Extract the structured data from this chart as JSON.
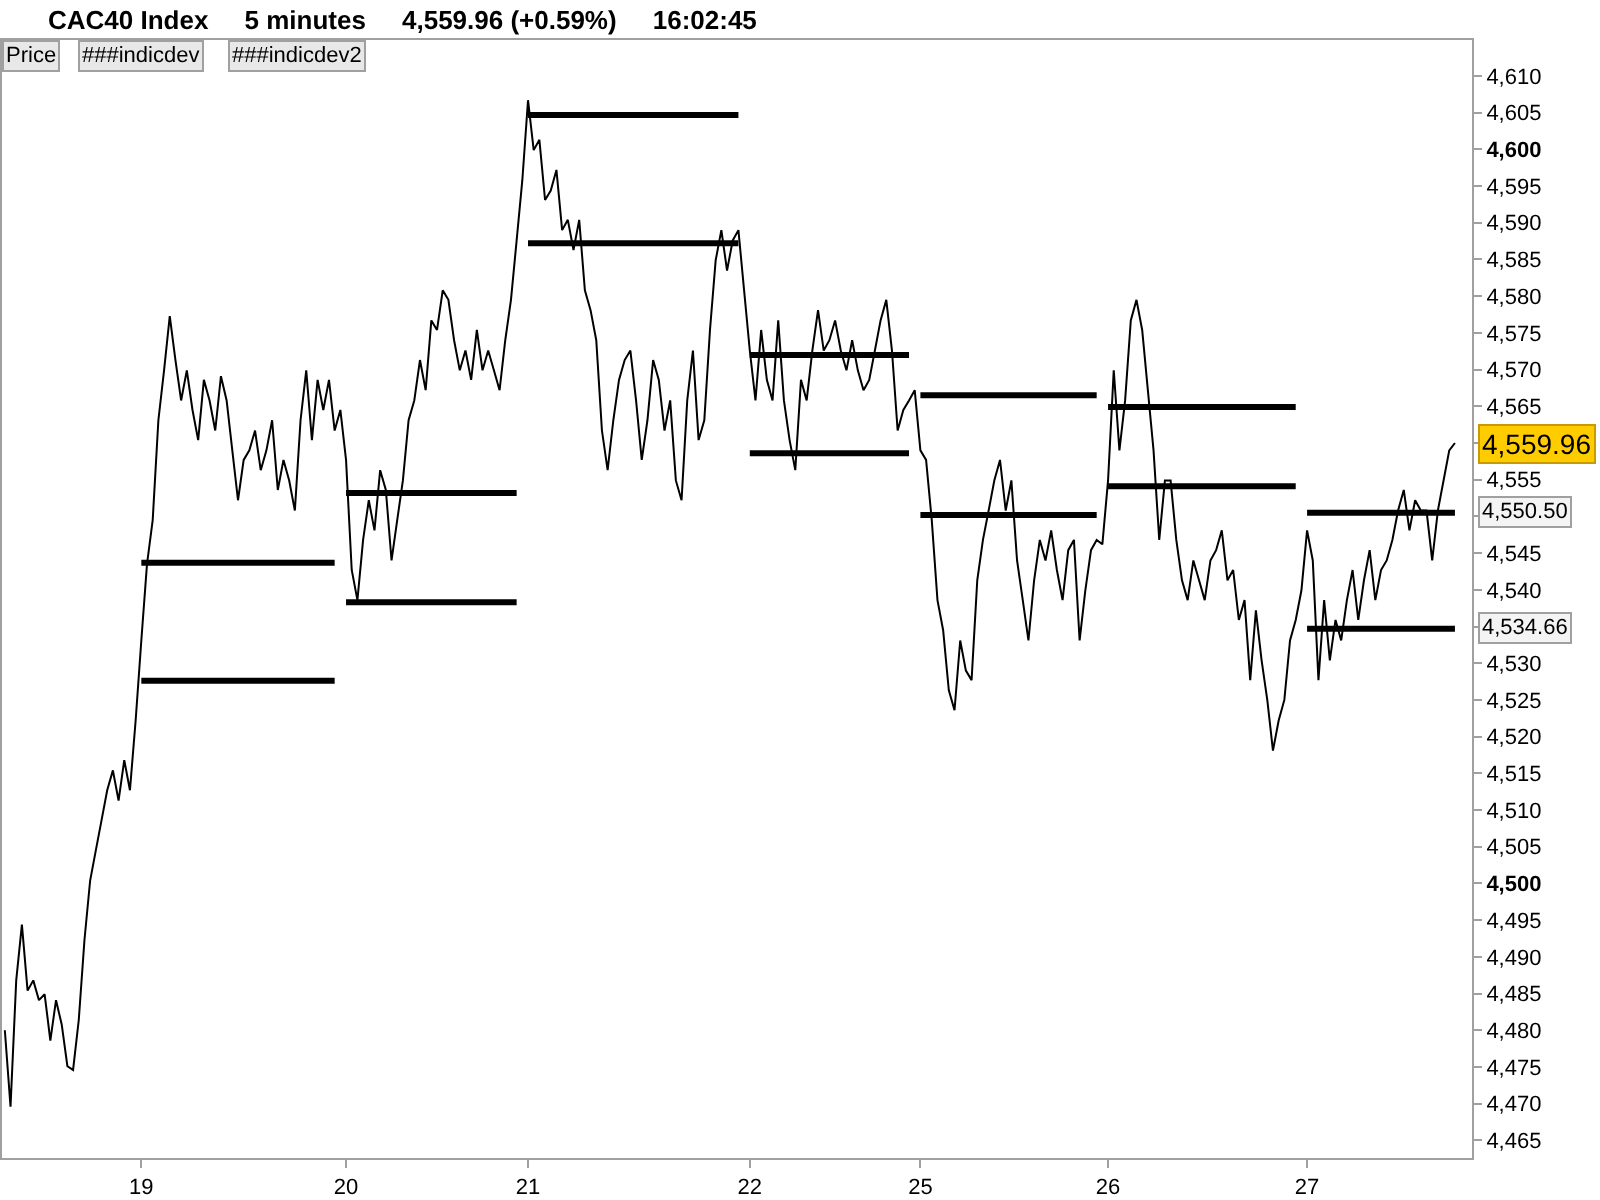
{
  "chart_data": {
    "type": "line",
    "title": "CAC40 Index   5 minutes   4,559.96 (+0.59%)   16:02:45",
    "annotations": [
      "Price",
      "###indicdev",
      "###indicdev2",
      "4,559.96",
      "4,550.50",
      "4,534.66"
    ],
    "categories": [
      null,
      null,
      null,
      null,
      null,
      null,
      null,
      null,
      null,
      null,
      null,
      null,
      null,
      null,
      null,
      null,
      null,
      null,
      null,
      null,
      null,
      null,
      null,
      null,
      "19",
      null,
      null,
      null,
      null,
      null,
      null,
      null,
      null,
      null,
      null,
      null,
      null,
      null,
      null,
      null,
      null,
      null,
      null,
      null,
      null,
      null,
      null,
      null,
      null,
      null,
      null,
      null,
      null,
      null,
      null,
      null,
      null,
      null,
      null,
      null,
      "20",
      null,
      null,
      null,
      null,
      null,
      null,
      null,
      null,
      null,
      null,
      null,
      null,
      null,
      null,
      null,
      null,
      null,
      null,
      null,
      null,
      null,
      null,
      null,
      null,
      null,
      null,
      null,
      null,
      null,
      null,
      null,
      "21",
      null,
      null,
      null,
      null,
      null,
      null,
      null,
      null,
      null,
      null,
      null,
      null,
      null,
      null,
      null,
      null,
      null,
      null,
      null,
      null,
      null,
      null,
      null,
      null,
      null,
      null,
      null,
      null,
      null,
      null,
      null,
      null,
      null,
      null,
      null,
      null,
      null,
      null,
      "22",
      null,
      null,
      null,
      null,
      null,
      null,
      null,
      null,
      null,
      null,
      null,
      null,
      null,
      null,
      null,
      null,
      null,
      null,
      null,
      null,
      null,
      null,
      null,
      null,
      null,
      null,
      null,
      null,
      null,
      "25",
      null,
      null,
      null,
      null,
      null,
      null,
      null,
      null,
      null,
      null,
      null,
      null,
      null,
      null,
      null,
      null,
      null,
      null,
      null,
      null,
      null,
      null,
      null,
      null,
      null,
      null,
      null,
      null,
      null,
      null,
      null,
      null,
      "26",
      null,
      null,
      null,
      null,
      null,
      null,
      null,
      null,
      null,
      null,
      null,
      null,
      null,
      null,
      null,
      null,
      null,
      null,
      null,
      null,
      null,
      null,
      null,
      null,
      null,
      null,
      null,
      null,
      null,
      null,
      null,
      null,
      null,
      null,
      "27",
      null,
      null,
      null,
      null,
      null,
      null,
      null,
      null,
      null,
      null,
      null,
      null,
      null,
      null,
      null,
      null,
      null,
      null,
      null,
      null,
      null,
      null,
      null,
      null,
      null,
      null
    ],
    "ylim": [
      4462.6,
      4614.9
    ],
    "yticks": [
      {
        "value": 4465,
        "label": "4,465"
      },
      {
        "value": 4470,
        "label": "4,470"
      },
      {
        "value": 4475,
        "label": "4,475"
      },
      {
        "value": 4480,
        "label": "4,480"
      },
      {
        "value": 4485,
        "label": "4,485"
      },
      {
        "value": 4490,
        "label": "4,490"
      },
      {
        "value": 4495,
        "label": "4,495"
      },
      {
        "value": 4500,
        "label": "4,500"
      },
      {
        "value": 4505,
        "label": "4,505"
      },
      {
        "value": 4510,
        "label": "4,510"
      },
      {
        "value": 4515,
        "label": "4,515"
      },
      {
        "value": 4520,
        "label": "4,520"
      },
      {
        "value": 4525,
        "label": "4,525"
      },
      {
        "value": 4530,
        "label": "4,530"
      },
      {
        "value": 4535,
        "label": null
      },
      {
        "value": 4540,
        "label": "4,540"
      },
      {
        "value": 4545,
        "label": "4,545"
      },
      {
        "value": 4550,
        "label": null
      },
      {
        "value": 4555,
        "label": "4,555"
      },
      {
        "value": 4560,
        "label": null
      },
      {
        "value": 4565,
        "label": "4,565"
      },
      {
        "value": 4570,
        "label": "4,570"
      },
      {
        "value": 4575,
        "label": "4,575"
      },
      {
        "value": 4580,
        "label": "4,580"
      },
      {
        "value": 4585,
        "label": "4,585"
      },
      {
        "value": 4590,
        "label": "4,590"
      },
      {
        "value": 4595,
        "label": "4,595"
      },
      {
        "value": 4600,
        "label": "4,600"
      },
      {
        "value": 4605,
        "label": "4,605"
      },
      {
        "value": 4610,
        "label": "4,610"
      }
    ],
    "series": [
      {
        "color": "#000000",
        "values": [
          4480,
          4469.6,
          4486.8,
          4494.4,
          4485.4,
          4486.8,
          4484.1,
          4484.9,
          4478.6,
          4484.1,
          4480.8,
          4475.1,
          4474.6,
          4481.4,
          4492.3,
          4500.4,
          4504.5,
          4508.6,
          4512.7,
          4515.4,
          4511.3,
          4516.8,
          4512.7,
          4522.2,
          4533.1,
          4543.5,
          4549.5,
          4563.1,
          4569.9,
          4577.3,
          4571.3,
          4565.8,
          4569.9,
          4564.5,
          4560.4,
          4568.6,
          4565.8,
          4561.7,
          4569.1,
          4565.8,
          4559,
          4552.2,
          4557.7,
          4559,
          4561.7,
          4556.3,
          4559,
          4563.1,
          4553.6,
          4557.7,
          4554.9,
          4550.8,
          4563.1,
          4569.9,
          4560.4,
          4568.6,
          4564.5,
          4568.6,
          4561.7,
          4564.5,
          4557.7,
          4542.7,
          4538.6,
          4546.8,
          4552.2,
          4548.1,
          4556.3,
          4553.6,
          4544,
          4549.5,
          4554.9,
          4563.1,
          4565.8,
          4571.3,
          4567.2,
          4576.7,
          4575.4,
          4580.8,
          4579.5,
          4574,
          4569.9,
          4572.6,
          4568.6,
          4575.4,
          4569.9,
          4572.6,
          4569.9,
          4567.2,
          4574,
          4579.5,
          4587.6,
          4595.8,
          4606.7,
          4599.9,
          4601.3,
          4593.1,
          4594.4,
          4597.2,
          4589,
          4590.4,
          4586.3,
          4590.4,
          4580.8,
          4578.1,
          4574,
          4561.7,
          4556.3,
          4563.1,
          4568.6,
          4571.3,
          4572.6,
          4565.8,
          4557.7,
          4563.1,
          4571.3,
          4568.6,
          4561.7,
          4565.8,
          4554.9,
          4552.2,
          4565.8,
          4572.6,
          4560.4,
          4563.1,
          4575.4,
          4584.9,
          4589,
          4583.5,
          4587.6,
          4589,
          4580.8,
          4572.6,
          4565.8,
          4575.4,
          4568.6,
          4565.8,
          4576.7,
          4565.8,
          4560.4,
          4556.3,
          4568.6,
          4565.8,
          4572.6,
          4578.1,
          4572.6,
          4574,
          4576.7,
          4572.6,
          4569.9,
          4574,
          4569.9,
          4567.2,
          4568.6,
          4572.6,
          4576.7,
          4579.5,
          4572.6,
          4561.7,
          4564.5,
          4565.8,
          4567.2,
          4559,
          4557.7,
          4549.5,
          4538.6,
          4534.5,
          4526.3,
          4523.6,
          4533.1,
          4529,
          4527.7,
          4541.3,
          4546.8,
          4550.8,
          4554.9,
          4557.7,
          4550.8,
          4554.9,
          4544,
          4538.6,
          4533.1,
          4541.3,
          4546.8,
          4544,
          4548.1,
          4542.7,
          4538.6,
          4545.4,
          4546.8,
          4533.1,
          4539.9,
          4545.4,
          4546.8,
          4546.2,
          4554.9,
          4569.9,
          4559,
          4565.8,
          4576.7,
          4579.5,
          4575.4,
          4567.2,
          4559,
          4546.8,
          4554.9,
          4554.9,
          4546.8,
          4541.3,
          4538.6,
          4544,
          4541.3,
          4538.6,
          4544,
          4545.4,
          4548.1,
          4541.3,
          4542.7,
          4535.9,
          4538.6,
          4527.7,
          4537.2,
          4530.4,
          4525,
          4518.1,
          4522.2,
          4525,
          4533.1,
          4535.9,
          4539.9,
          4548.1,
          4544,
          4527.7,
          4538.6,
          4530.4,
          4535.9,
          4533.1,
          4538.6,
          4542.7,
          4535.9,
          4541.3,
          4545.4,
          4538.6,
          4542.7,
          4544,
          4546.8,
          4550.8,
          4553.6,
          4548.1,
          4552.2,
          4550.8,
          4550.8,
          4544,
          4550.8,
          4554.9,
          4559,
          4560
        ]
      },
      {
        "color": "#000000",
        "values": [
          null,
          null,
          null,
          null,
          null,
          null,
          null,
          null,
          null,
          null,
          null,
          null,
          null,
          null,
          null,
          null,
          null,
          null,
          null,
          null,
          null,
          null,
          null,
          null,
          4543.7,
          4543.7,
          4543.7,
          4543.7,
          4543.7,
          4543.7,
          4543.7,
          4543.7,
          4543.7,
          4543.7,
          4543.7,
          4543.7,
          4543.7,
          4543.7,
          4543.7,
          4543.7,
          4543.7,
          4543.7,
          4543.7,
          4543.7,
          4543.7,
          4543.7,
          4543.7,
          4543.7,
          4543.7,
          4543.7,
          4543.7,
          4543.7,
          4543.7,
          4543.7,
          4543.7,
          4543.7,
          4543.7,
          4543.7,
          4543.7,
          null,
          4553.2,
          4553.2,
          4553.2,
          4553.2,
          4553.2,
          4553.2,
          4553.2,
          4553.2,
          4553.2,
          4553.2,
          4553.2,
          4553.2,
          4553.2,
          4553.2,
          4553.2,
          4553.2,
          4553.2,
          4553.2,
          4553.2,
          4553.2,
          4553.2,
          4553.2,
          4553.2,
          4553.2,
          4553.2,
          4553.2,
          4553.2,
          4553.2,
          4553.2,
          4553.2,
          4553.2,
          null,
          4604.7,
          4604.7,
          4604.7,
          4604.7,
          4604.7,
          4604.7,
          4604.7,
          4604.7,
          4604.7,
          4604.7,
          4604.7,
          4604.7,
          4604.7,
          4604.7,
          4604.7,
          4604.7,
          4604.7,
          4604.7,
          4604.7,
          4604.7,
          4604.7,
          4604.7,
          4604.7,
          4604.7,
          4604.7,
          4604.7,
          4604.7,
          4604.7,
          4604.7,
          4604.7,
          4604.7,
          4604.7,
          4604.7,
          4604.7,
          4604.7,
          4604.7,
          4604.7,
          4604.7,
          null,
          4572,
          4572,
          4572,
          4572,
          4572,
          4572,
          4572,
          4572,
          4572,
          4572,
          4572,
          4572,
          4572,
          4572,
          4572,
          4572,
          4572,
          4572,
          4572,
          4572,
          4572,
          4572,
          4572,
          4572,
          4572,
          4572,
          4572,
          4572,
          4572,
          null,
          4566.5,
          4566.5,
          4566.5,
          4566.5,
          4566.5,
          4566.5,
          4566.5,
          4566.5,
          4566.5,
          4566.5,
          4566.5,
          4566.5,
          4566.5,
          4566.5,
          4566.5,
          4566.5,
          4566.5,
          4566.5,
          4566.5,
          4566.5,
          4566.5,
          4566.5,
          4566.5,
          4566.5,
          4566.5,
          4566.5,
          4566.5,
          4566.5,
          4566.5,
          4566.5,
          4566.5,
          4566.5,
          null,
          4564.9,
          4564.9,
          4564.9,
          4564.9,
          4564.9,
          4564.9,
          4564.9,
          4564.9,
          4564.9,
          4564.9,
          4564.9,
          4564.9,
          4564.9,
          4564.9,
          4564.9,
          4564.9,
          4564.9,
          4564.9,
          4564.9,
          4564.9,
          4564.9,
          4564.9,
          4564.9,
          4564.9,
          4564.9,
          4564.9,
          4564.9,
          4564.9,
          4564.9,
          4564.9,
          4564.9,
          4564.9,
          4564.9,
          4564.9,
          null,
          4550.5,
          4550.5,
          4550.5,
          4550.5,
          4550.5,
          4550.5,
          4550.5,
          4550.5,
          4550.5,
          4550.5,
          4550.5,
          4550.5,
          4550.5,
          4550.5,
          4550.5,
          4550.5,
          4550.5,
          4550.5,
          4550.5,
          4550.5,
          4550.5,
          4550.5,
          4550.5,
          4550.5,
          4550.5,
          4550.5,
          4550.5
        ]
      },
      {
        "color": "#000000",
        "values": [
          null,
          null,
          null,
          null,
          null,
          null,
          null,
          null,
          null,
          null,
          null,
          null,
          null,
          null,
          null,
          null,
          null,
          null,
          null,
          null,
          null,
          null,
          null,
          null,
          4527.6,
          4527.6,
          4527.6,
          4527.6,
          4527.6,
          4527.6,
          4527.6,
          4527.6,
          4527.6,
          4527.6,
          4527.6,
          4527.6,
          4527.6,
          4527.6,
          4527.6,
          4527.6,
          4527.6,
          4527.6,
          4527.6,
          4527.6,
          4527.6,
          4527.6,
          4527.6,
          4527.6,
          4527.6,
          4527.6,
          4527.6,
          4527.6,
          4527.6,
          4527.6,
          4527.6,
          4527.6,
          4527.6,
          4527.6,
          4527.6,
          null,
          4538.3,
          4538.3,
          4538.3,
          4538.3,
          4538.3,
          4538.3,
          4538.3,
          4538.3,
          4538.3,
          4538.3,
          4538.3,
          4538.3,
          4538.3,
          4538.3,
          4538.3,
          4538.3,
          4538.3,
          4538.3,
          4538.3,
          4538.3,
          4538.3,
          4538.3,
          4538.3,
          4538.3,
          4538.3,
          4538.3,
          4538.3,
          4538.3,
          4538.3,
          4538.3,
          4538.3,
          null,
          4587.2,
          4587.2,
          4587.2,
          4587.2,
          4587.2,
          4587.2,
          4587.2,
          4587.2,
          4587.2,
          4587.2,
          4587.2,
          4587.2,
          4587.2,
          4587.2,
          4587.2,
          4587.2,
          4587.2,
          4587.2,
          4587.2,
          4587.2,
          4587.2,
          4587.2,
          4587.2,
          4587.2,
          4587.2,
          4587.2,
          4587.2,
          4587.2,
          4587.2,
          4587.2,
          4587.2,
          4587.2,
          4587.2,
          4587.2,
          4587.2,
          4587.2,
          4587.2,
          4587.2,
          null,
          4558.6,
          4558.6,
          4558.6,
          4558.6,
          4558.6,
          4558.6,
          4558.6,
          4558.6,
          4558.6,
          4558.6,
          4558.6,
          4558.6,
          4558.6,
          4558.6,
          4558.6,
          4558.6,
          4558.6,
          4558.6,
          4558.6,
          4558.6,
          4558.6,
          4558.6,
          4558.6,
          4558.6,
          4558.6,
          4558.6,
          4558.6,
          4558.6,
          4558.6,
          null,
          4550.2,
          4550.2,
          4550.2,
          4550.2,
          4550.2,
          4550.2,
          4550.2,
          4550.2,
          4550.2,
          4550.2,
          4550.2,
          4550.2,
          4550.2,
          4550.2,
          4550.2,
          4550.2,
          4550.2,
          4550.2,
          4550.2,
          4550.2,
          4550.2,
          4550.2,
          4550.2,
          4550.2,
          4550.2,
          4550.2,
          4550.2,
          4550.2,
          4550.2,
          4550.2,
          4550.2,
          4550.2,
          null,
          4554.1,
          4554.1,
          4554.1,
          4554.1,
          4554.1,
          4554.1,
          4554.1,
          4554.1,
          4554.1,
          4554.1,
          4554.1,
          4554.1,
          4554.1,
          4554.1,
          4554.1,
          4554.1,
          4554.1,
          4554.1,
          4554.1,
          4554.1,
          4554.1,
          4554.1,
          4554.1,
          4554.1,
          4554.1,
          4554.1,
          4554.1,
          4554.1,
          4554.1,
          4554.1,
          4554.1,
          4554.1,
          4554.1,
          4554.1,
          null,
          4534.7,
          4534.7,
          4534.7,
          4534.7,
          4534.7,
          4534.7,
          4534.7,
          4534.7,
          4534.7,
          4534.7,
          4534.7,
          4534.7,
          4534.7,
          4534.7,
          4534.7,
          4534.7,
          4534.7,
          4534.7,
          4534.7,
          4534.7,
          4534.7,
          4534.7,
          4534.7,
          4534.7,
          4534.7,
          4534.7,
          4534.7
        ]
      }
    ]
  }
}
